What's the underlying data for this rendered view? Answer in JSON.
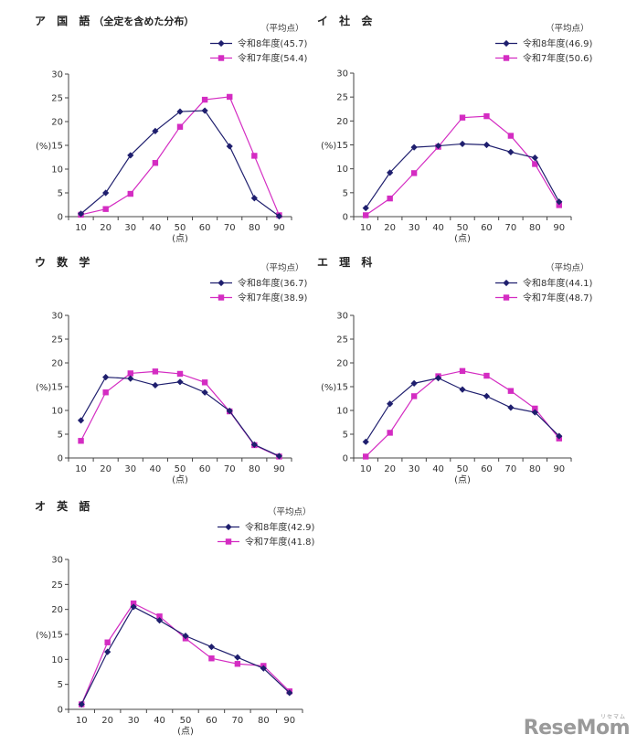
{
  "legend_header": "（平均点）",
  "colors": {
    "series_new": "#1f1f6e",
    "series_old": "#d42cc2",
    "axis": "#444444",
    "grid": "#000000"
  },
  "chart_data": [
    {
      "type": "line",
      "title": "ア 国 語",
      "subtitle": "（全定を含めた分布）",
      "ylabel": "(%)",
      "xlabel": "(点)",
      "categories": [
        "10",
        "20",
        "30",
        "40",
        "50",
        "60",
        "70",
        "80",
        "90"
      ],
      "ylim": [
        0,
        30
      ],
      "yticks": [
        "0",
        "5",
        "10",
        "15",
        "20",
        "25",
        "30"
      ],
      "series": [
        {
          "name": "令和8年度(45.7)",
          "marker": "diamond",
          "values": [
            0.6,
            5.0,
            12.9,
            18.0,
            22.1,
            22.3,
            14.8,
            3.9,
            0.1
          ]
        },
        {
          "name": "令和7年度(54.4)",
          "marker": "square",
          "values": [
            0.4,
            1.6,
            4.8,
            11.3,
            18.9,
            24.6,
            25.2,
            12.8,
            0.3
          ]
        }
      ]
    },
    {
      "type": "line",
      "title": "イ 社 会",
      "subtitle": "",
      "ylabel": "(%)",
      "xlabel": "(点)",
      "categories": [
        "10",
        "20",
        "30",
        "40",
        "50",
        "60",
        "70",
        "80",
        "90"
      ],
      "ylim": [
        0,
        30
      ],
      "yticks": [
        "0",
        "5",
        "10",
        "15",
        "20",
        "25",
        "30"
      ],
      "series": [
        {
          "name": "令和8年度(46.9)",
          "marker": "diamond",
          "values": [
            1.8,
            9.2,
            14.5,
            14.8,
            15.2,
            15.0,
            13.5,
            12.3,
            3.1
          ]
        },
        {
          "name": "令和7年度(50.6)",
          "marker": "square",
          "values": [
            0.3,
            3.8,
            9.1,
            14.6,
            20.7,
            21.0,
            16.9,
            11.0,
            2.4
          ]
        }
      ]
    },
    {
      "type": "line",
      "title": "ウ 数 学",
      "subtitle": "",
      "ylabel": "(%)",
      "xlabel": "(点)",
      "categories": [
        "10",
        "20",
        "30",
        "40",
        "50",
        "60",
        "70",
        "80",
        "90"
      ],
      "ylim": [
        0,
        30
      ],
      "yticks": [
        "0",
        "5",
        "10",
        "15",
        "20",
        "25",
        "30"
      ],
      "series": [
        {
          "name": "令和8年度(36.7)",
          "marker": "diamond",
          "values": [
            7.9,
            17.0,
            16.7,
            15.3,
            16.0,
            13.8,
            9.9,
            2.8,
            0.4
          ]
        },
        {
          "name": "令和7年度(38.9)",
          "marker": "square",
          "values": [
            3.6,
            13.8,
            17.8,
            18.2,
            17.7,
            15.9,
            9.8,
            2.7,
            0.3
          ]
        }
      ]
    },
    {
      "type": "line",
      "title": "エ 理 科",
      "subtitle": "",
      "ylabel": "(%)",
      "xlabel": "(点)",
      "categories": [
        "10",
        "20",
        "30",
        "40",
        "50",
        "60",
        "70",
        "80",
        "90"
      ],
      "ylim": [
        0,
        30
      ],
      "yticks": [
        "0",
        "5",
        "10",
        "15",
        "20",
        "25",
        "30"
      ],
      "series": [
        {
          "name": "令和8年度(44.1)",
          "marker": "diamond",
          "values": [
            3.4,
            11.4,
            15.7,
            16.8,
            14.4,
            13.0,
            10.6,
            9.6,
            4.6
          ]
        },
        {
          "name": "令和7年度(48.7)",
          "marker": "square",
          "values": [
            0.3,
            5.3,
            13.0,
            17.2,
            18.3,
            17.3,
            14.1,
            10.4,
            4.1
          ]
        }
      ]
    },
    {
      "type": "line",
      "title": "オ 英 語",
      "subtitle": "",
      "ylabel": "(%)",
      "xlabel": "(点)",
      "categories": [
        "10",
        "20",
        "30",
        "40",
        "50",
        "60",
        "70",
        "80",
        "90"
      ],
      "ylim": [
        0,
        30
      ],
      "yticks": [
        "0",
        "5",
        "10",
        "15",
        "20",
        "25",
        "30"
      ],
      "series": [
        {
          "name": "令和8年度(42.9)",
          "marker": "diamond",
          "values": [
            1.0,
            11.5,
            20.5,
            17.8,
            14.7,
            12.5,
            10.4,
            8.2,
            3.3
          ]
        },
        {
          "name": "令和7年度(41.8)",
          "marker": "square",
          "values": [
            1.0,
            13.4,
            21.2,
            18.6,
            14.2,
            10.2,
            9.1,
            8.7,
            3.6
          ]
        }
      ]
    }
  ],
  "watermark": {
    "text": "ReseMom",
    "small": "リセマム"
  }
}
